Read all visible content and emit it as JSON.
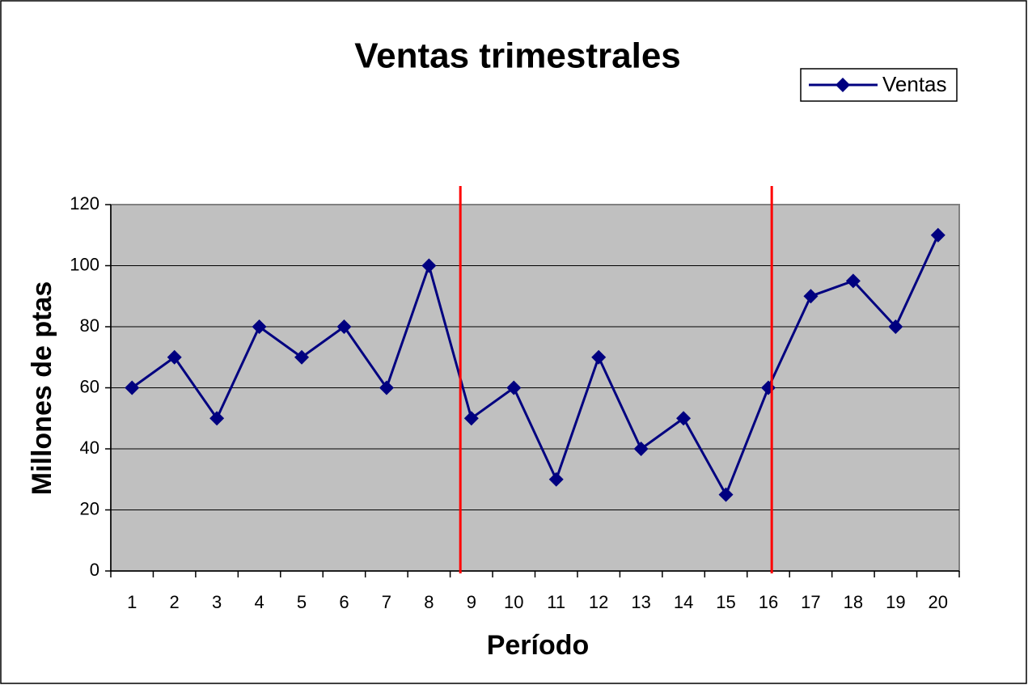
{
  "chart_data": {
    "type": "line",
    "title": "Ventas trimestrales",
    "x_label": "Período",
    "y_label": "Millones de ptas",
    "categories": [
      "1",
      "2",
      "3",
      "4",
      "5",
      "6",
      "7",
      "8",
      "9",
      "10",
      "11",
      "12",
      "13",
      "14",
      "15",
      "16",
      "17",
      "18",
      "19",
      "20"
    ],
    "series": [
      {
        "name": "Ventas",
        "color": "#000080",
        "values": [
          60,
          70,
          50,
          80,
          70,
          80,
          60,
          100,
          50,
          60,
          30,
          70,
          40,
          50,
          25,
          60,
          90,
          95,
          80,
          110
        ]
      }
    ],
    "ylim": [
      0,
      120
    ],
    "yticks": [
      0,
      20,
      40,
      60,
      80,
      100,
      120
    ],
    "grid": true,
    "legend": "top-right",
    "vlines": {
      "color": "#ff0000",
      "x": [
        8.74,
        16.08
      ]
    }
  }
}
